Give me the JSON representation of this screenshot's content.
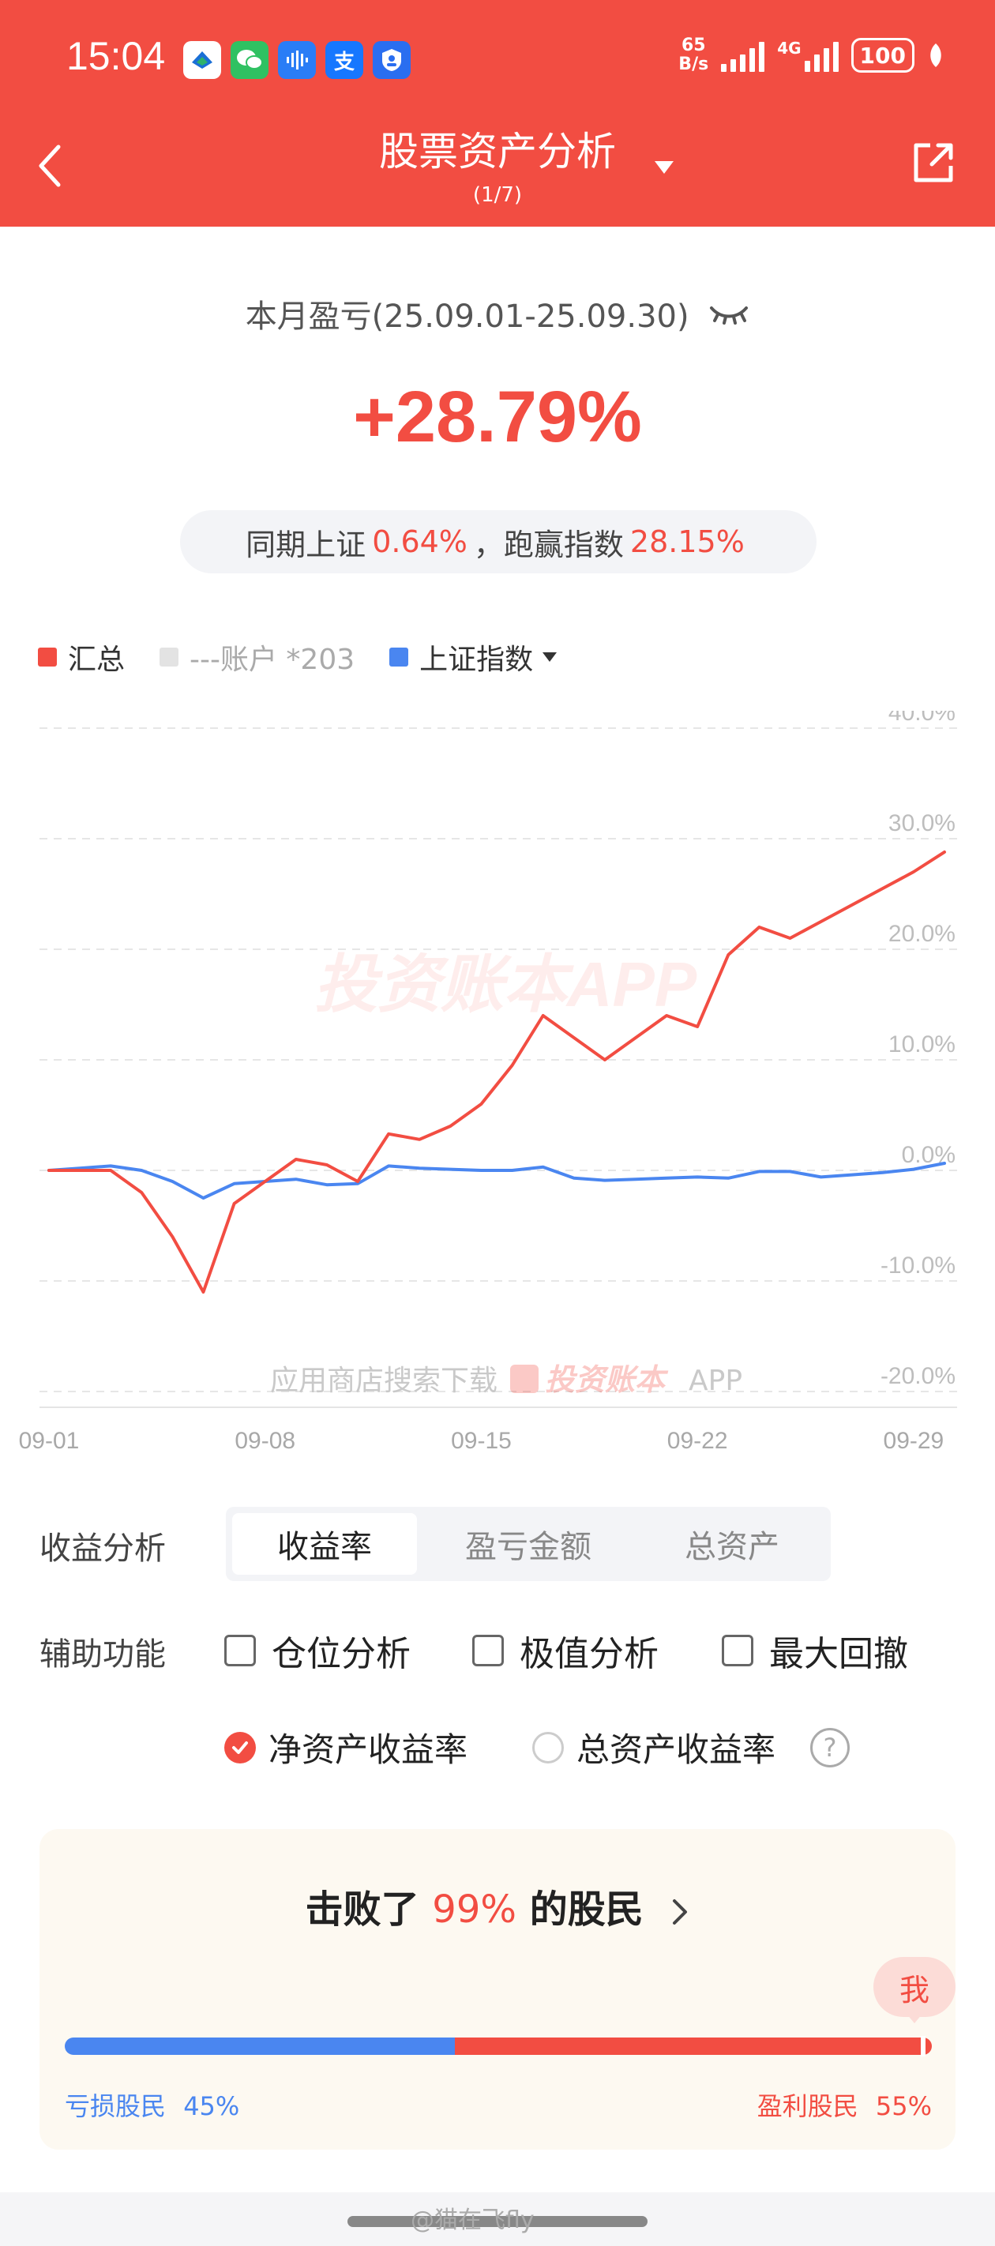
{
  "status": {
    "time": "15:04",
    "net_speed_top": "65",
    "net_speed_bottom": "B/s",
    "network_type": "4G",
    "battery": "100",
    "app_icons": [
      "payment-icon",
      "wechat-icon",
      "voice-icon",
      "alipay-icon",
      "shield-icon"
    ],
    "alipay_char": "支"
  },
  "nav": {
    "title": "股票资产分析",
    "subtitle": "(1/7)"
  },
  "summary": {
    "period": "本月盈亏(25.09.01-25.09.30)",
    "return_pct": "+28.79%",
    "compare_prefix": "同期上证",
    "index_return": "0.64%",
    "compare_mid": "，跑赢指数",
    "outperform": "28.15%"
  },
  "legend": {
    "total": "汇总",
    "account": "---账户 *203",
    "index": "上证指数"
  },
  "colors": {
    "accent": "#f24d42",
    "index_blue": "#4a86f0",
    "account_gray": "#e3e3e3"
  },
  "chart_data": {
    "type": "line",
    "x": [
      "09-01",
      "09-02",
      "09-03",
      "09-04",
      "09-05",
      "09-06",
      "09-07",
      "09-08",
      "09-09",
      "09-10",
      "09-11",
      "09-12",
      "09-13",
      "09-14",
      "09-15",
      "09-16",
      "09-17",
      "09-18",
      "09-19",
      "09-20",
      "09-21",
      "09-22",
      "09-23",
      "09-24",
      "09-25",
      "09-26",
      "09-27",
      "09-28",
      "09-29",
      "09-30"
    ],
    "xticks": [
      "09-01",
      "09-08",
      "09-15",
      "09-22",
      "09-29"
    ],
    "ylim": [
      -20,
      40
    ],
    "yticks": [
      "40.0%",
      "30.0%",
      "20.0%",
      "10.0%",
      "0.0%",
      "-10.0%",
      "-20.0%"
    ],
    "series": [
      {
        "name": "汇总",
        "color": "#f24d42",
        "values": [
          0.0,
          0.0,
          0.0,
          -2.0,
          -6.0,
          -11.0,
          -3.0,
          -1.0,
          1.0,
          0.5,
          -1.0,
          3.3,
          2.8,
          4.0,
          6.0,
          9.5,
          14.0,
          12.0,
          10.0,
          12.0,
          14.0,
          13.0,
          19.5,
          22.0,
          21.0,
          22.5,
          24.0,
          25.5,
          27.0,
          28.79
        ]
      },
      {
        "name": "上证指数",
        "color": "#4a86f0",
        "values": [
          0.0,
          0.2,
          0.4,
          0.0,
          -1.0,
          -2.5,
          -1.2,
          -1.0,
          -0.8,
          -1.3,
          -1.2,
          0.4,
          0.2,
          0.1,
          0.0,
          0.0,
          0.3,
          -0.7,
          -0.9,
          -0.8,
          -0.7,
          -0.6,
          -0.7,
          -0.1,
          -0.1,
          -0.6,
          -0.4,
          -0.2,
          0.1,
          0.64
        ]
      }
    ],
    "watermark_center": "投资账本APP",
    "watermark_bottom_prefix": "应用商店搜索下载",
    "watermark_bottom_brand": "投资账本",
    "watermark_bottom_suffix": "APP"
  },
  "analysis": {
    "label": "收益分析",
    "tabs": [
      {
        "label": "收益率",
        "active": true
      },
      {
        "label": "盈亏金额",
        "active": false
      },
      {
        "label": "总资产",
        "active": false
      }
    ]
  },
  "aux": {
    "label": "辅助功能",
    "options": [
      "仓位分析",
      "极值分析",
      "最大回撤"
    ]
  },
  "return_mode": {
    "net": "净资产收益率",
    "total": "总资产收益率",
    "help": "?"
  },
  "beat": {
    "prefix": "击败了",
    "pct": "99%",
    "suffix": "的股民",
    "me": "我",
    "loss_label": "亏损股民",
    "loss_pct": "45%",
    "gain_label": "盈利股民",
    "gain_pct": "55%",
    "loss_fraction": 0.45,
    "my_percentile": 0.99
  },
  "footer": {
    "credit": "@猫在飞fly"
  }
}
